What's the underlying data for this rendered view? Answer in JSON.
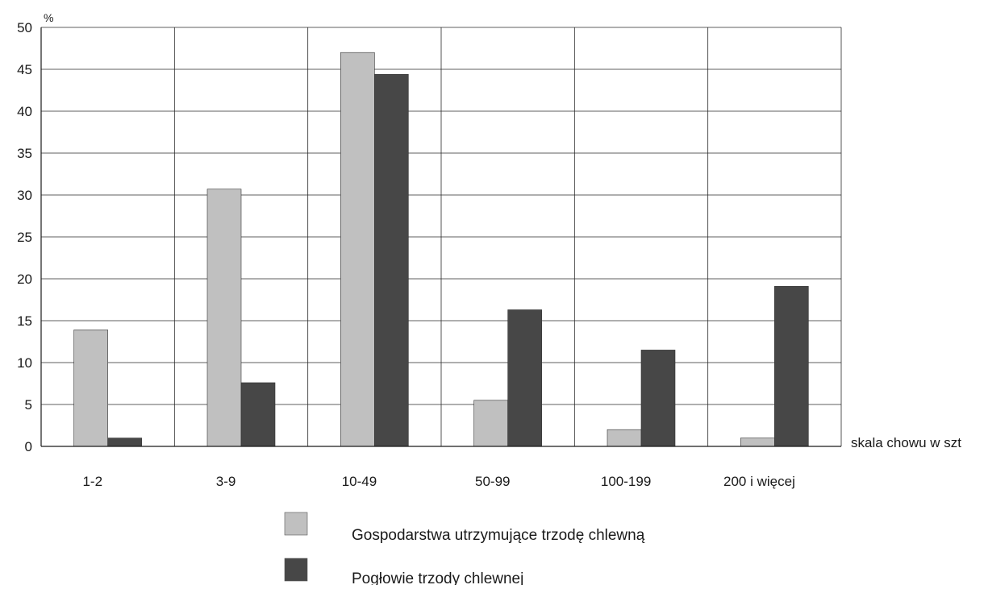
{
  "chart_data": {
    "type": "bar",
    "title": "",
    "ylabel": "%",
    "xlabel": "skala chowu w szt",
    "categories": [
      "1-2",
      "3-9",
      "10-49",
      "50-99",
      "100-199",
      "200 i więcej"
    ],
    "series": [
      {
        "name": "Gospodarstwa utrzymujące trzodę chlewną",
        "values": [
          13.9,
          30.7,
          47.0,
          5.5,
          2.0,
          1.0
        ],
        "color": "#c0c0c0"
      },
      {
        "name": "Pogłowie trzody chlewnej",
        "values": [
          1.0,
          7.6,
          44.4,
          16.3,
          11.5,
          19.1
        ],
        "color": "#474747"
      }
    ],
    "ylim": [
      0,
      50
    ],
    "yticks": [
      0,
      5,
      10,
      15,
      20,
      25,
      30,
      35,
      40,
      45,
      50
    ],
    "grid": true,
    "legend_position": "bottom"
  }
}
